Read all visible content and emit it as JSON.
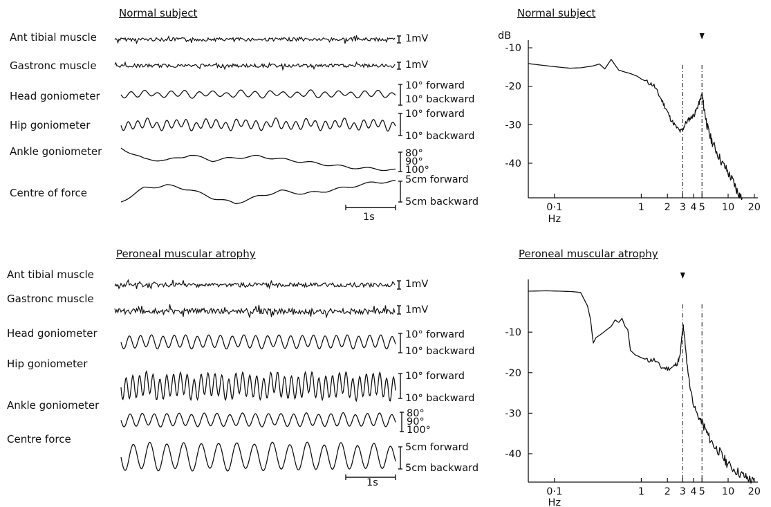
{
  "panels": [
    {
      "title": "Normal subject",
      "traces": [
        {
          "label": "Ant tibial muscle",
          "scale_top": "1mV",
          "scale_bottom": ""
        },
        {
          "label": "Gastronc muscle",
          "scale_top": "1mV",
          "scale_bottom": ""
        },
        {
          "label": "Head goniometer",
          "scale_top": "10° forward",
          "scale_bottom": "10° backward"
        },
        {
          "label": "Hip goniometer",
          "scale_top": "10° forward",
          "scale_bottom": "10° backward"
        },
        {
          "label": "Ankle goniometer",
          "scale_top": "80°",
          "scale_mid": "90°",
          "scale_bottom": "100°"
        },
        {
          "label": "Centre of force",
          "scale_top": "5cm forward",
          "scale_bottom": "5cm backward"
        }
      ],
      "time_bar": "1s"
    },
    {
      "title": "Peroneal muscular atrophy",
      "traces": [
        {
          "label": "Ant tibial muscle",
          "scale_top": "1mV",
          "scale_bottom": ""
        },
        {
          "label": "Gastronc muscle",
          "scale_top": "1mV",
          "scale_bottom": ""
        },
        {
          "label": "Head goniometer",
          "scale_top": "10° forward",
          "scale_bottom": "10° backward"
        },
        {
          "label": "Hip goniometer",
          "scale_top": "10° forward",
          "scale_bottom": "10° backward"
        },
        {
          "label": "Ankle goniometer",
          "scale_top": "80°",
          "scale_mid": "90°",
          "scale_bottom": "100°"
        },
        {
          "label": "Centre force",
          "scale_top": "5cm forward",
          "scale_bottom": "5cm backward"
        }
      ],
      "time_bar": "1s"
    }
  ],
  "chart_data": [
    {
      "type": "line",
      "title": "Normal subject",
      "ylabel": "dB",
      "xlabel": "Hz",
      "x_scale": "log",
      "xlim": [
        0.05,
        22
      ],
      "ylim": [
        -49,
        -8
      ],
      "x_ticks": [
        {
          "value": 0.1,
          "label": "0·1"
        },
        {
          "value": 1,
          "label": "1"
        },
        {
          "value": 2,
          "label": "2"
        },
        {
          "value": 3,
          "label": "3"
        },
        {
          "value": 4,
          "label": "4"
        },
        {
          "value": 5,
          "label": "5"
        },
        {
          "value": 10,
          "label": "10"
        },
        {
          "value": 20,
          "label": "20"
        }
      ],
      "y_ticks": [
        {
          "value": -10,
          "label": "-10"
        },
        {
          "value": -20,
          "label": "-20"
        },
        {
          "value": -30,
          "label": "-30"
        },
        {
          "value": -40,
          "label": "-40"
        }
      ],
      "marker_lines": [
        3,
        5
      ],
      "peak_arrow": 5,
      "series": [
        {
          "points": [
            [
              0.05,
              -14.1
            ],
            [
              0.07,
              -14.5
            ],
            [
              0.1,
              -14.9
            ],
            [
              0.15,
              -15.3
            ],
            [
              0.2,
              -15.2
            ],
            [
              0.28,
              -14.7
            ],
            [
              0.33,
              -14.2
            ],
            [
              0.38,
              -15.5
            ],
            [
              0.45,
              -13.0
            ],
            [
              0.55,
              -15.8
            ],
            [
              0.65,
              -16.3
            ],
            [
              0.75,
              -16.7
            ],
            [
              0.9,
              -17.4
            ],
            [
              1.0,
              -18.1
            ],
            [
              1.2,
              -19.0
            ],
            [
              1.4,
              -19.8
            ],
            [
              1.6,
              -22.3
            ],
            [
              1.8,
              -24.5
            ],
            [
              2.0,
              -26.6
            ],
            [
              2.2,
              -28.7
            ],
            [
              2.5,
              -30.5
            ],
            [
              2.8,
              -31.7
            ],
            [
              3.0,
              -31.3
            ],
            [
              3.2,
              -29.8
            ],
            [
              3.5,
              -28.7
            ],
            [
              3.8,
              -28.0
            ],
            [
              4.1,
              -27.3
            ],
            [
              4.4,
              -25.6
            ],
            [
              4.7,
              -24.0
            ],
            [
              5.0,
              -22.0
            ],
            [
              5.2,
              -24.7
            ],
            [
              5.5,
              -28.0
            ],
            [
              5.8,
              -30.8
            ],
            [
              6.2,
              -33.1
            ],
            [
              6.8,
              -35.2
            ],
            [
              7.5,
              -37.3
            ],
            [
              8.5,
              -39.9
            ],
            [
              9.5,
              -41.5
            ],
            [
              10.5,
              -43.4
            ],
            [
              11.5,
              -44.8
            ],
            [
              12.5,
              -46.9
            ],
            [
              13.5,
              -48.2
            ],
            [
              14.5,
              -49.0
            ]
          ]
        }
      ]
    },
    {
      "type": "line",
      "title": "Peroneal muscular atrophy",
      "ylabel": "",
      "xlabel": "Hz",
      "x_scale": "log",
      "xlim": [
        0.05,
        22
      ],
      "ylim": [
        -47,
        3
      ],
      "x_ticks": [
        {
          "value": 0.1,
          "label": "0·1"
        },
        {
          "value": 1,
          "label": "1"
        },
        {
          "value": 2,
          "label": "2"
        },
        {
          "value": 3,
          "label": "3"
        },
        {
          "value": 4,
          "label": "4"
        },
        {
          "value": 5,
          "label": "5"
        },
        {
          "value": 10,
          "label": "10"
        },
        {
          "value": 20,
          "label": "20"
        }
      ],
      "y_ticks": [
        {
          "value": -10,
          "label": "-10"
        },
        {
          "value": -20,
          "label": "-20"
        },
        {
          "value": -30,
          "label": "-30"
        },
        {
          "value": -40,
          "label": "-40"
        }
      ],
      "marker_lines": [
        3,
        5
      ],
      "peak_arrow": 3,
      "series": [
        {
          "points": [
            [
              0.05,
              0.1
            ],
            [
              0.08,
              0.2
            ],
            [
              0.12,
              0.1
            ],
            [
              0.16,
              0.0
            ],
            [
              0.2,
              -0.2
            ],
            [
              0.24,
              -3.5
            ],
            [
              0.26,
              -6.8
            ],
            [
              0.28,
              -12.7
            ],
            [
              0.3,
              -11.4
            ],
            [
              0.35,
              -10.4
            ],
            [
              0.4,
              -9.4
            ],
            [
              0.45,
              -8.6
            ],
            [
              0.5,
              -7.0
            ],
            [
              0.55,
              -7.6
            ],
            [
              0.6,
              -6.6
            ],
            [
              0.65,
              -8.6
            ],
            [
              0.7,
              -9.4
            ],
            [
              0.75,
              -14.5
            ],
            [
              0.85,
              -15.6
            ],
            [
              1.0,
              -16.3
            ],
            [
              1.2,
              -17.0
            ],
            [
              1.4,
              -16.8
            ],
            [
              1.7,
              -18.7
            ],
            [
              2.0,
              -19.0
            ],
            [
              2.3,
              -18.7
            ],
            [
              2.6,
              -17.6
            ],
            [
              2.8,
              -15.9
            ],
            [
              2.95,
              -10.5
            ],
            [
              3.05,
              -8.5
            ],
            [
              3.15,
              -11.2
            ],
            [
              3.3,
              -16.2
            ],
            [
              3.6,
              -22.8
            ],
            [
              4.0,
              -27.9
            ],
            [
              4.5,
              -30.8
            ],
            [
              5.0,
              -32.3
            ],
            [
              5.5,
              -34.1
            ],
            [
              6.0,
              -35.9
            ],
            [
              7.0,
              -38.2
            ],
            [
              8.0,
              -39.6
            ],
            [
              9.0,
              -41.3
            ],
            [
              10.0,
              -42.7
            ],
            [
              12.0,
              -44.0
            ],
            [
              14.0,
              -45.0
            ],
            [
              16.0,
              -45.8
            ],
            [
              18.0,
              -46.4
            ],
            [
              20.0,
              -47.0
            ]
          ]
        }
      ]
    }
  ]
}
